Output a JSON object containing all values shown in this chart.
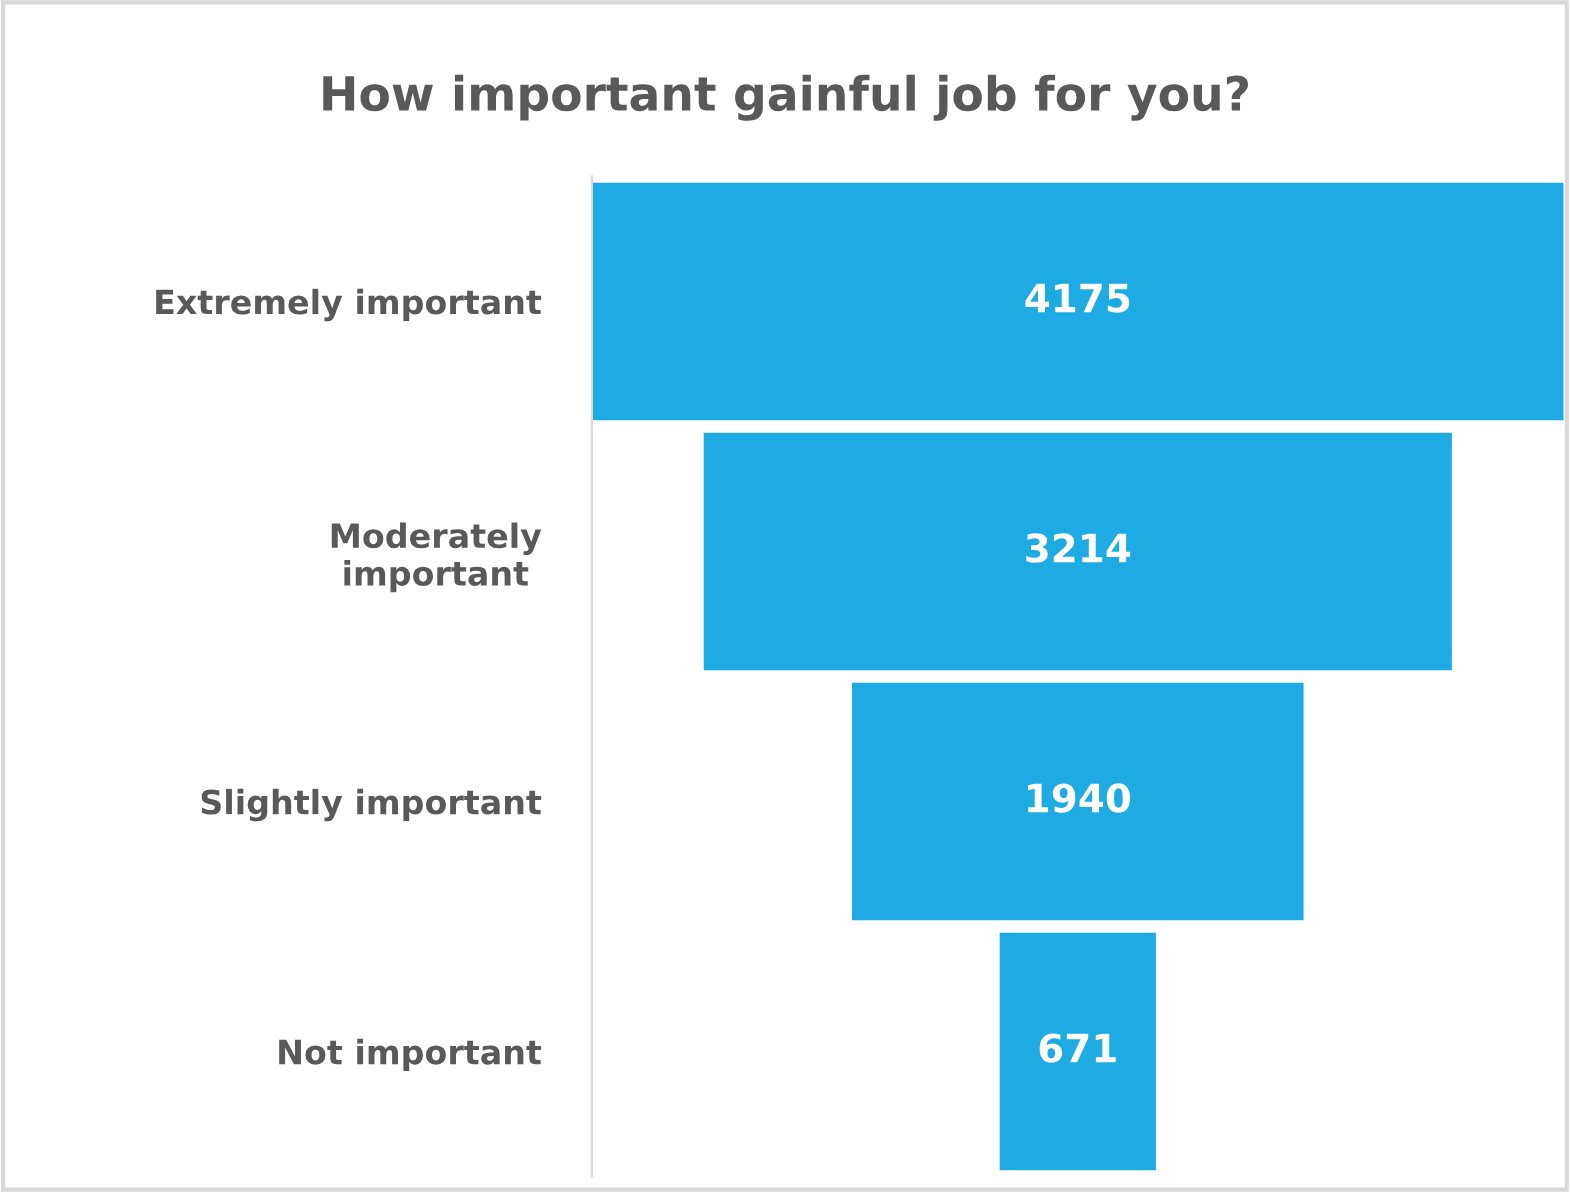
{
  "chart_data": {
    "type": "other",
    "title": "How important gainful job for you?",
    "categories": [
      "Extremely important",
      "Moderately\nimportant",
      "Slightly important",
      "Not important"
    ],
    "values": [
      4175,
      3214,
      1940,
      671
    ],
    "color": "#1eabe3",
    "data_labels": true
  }
}
